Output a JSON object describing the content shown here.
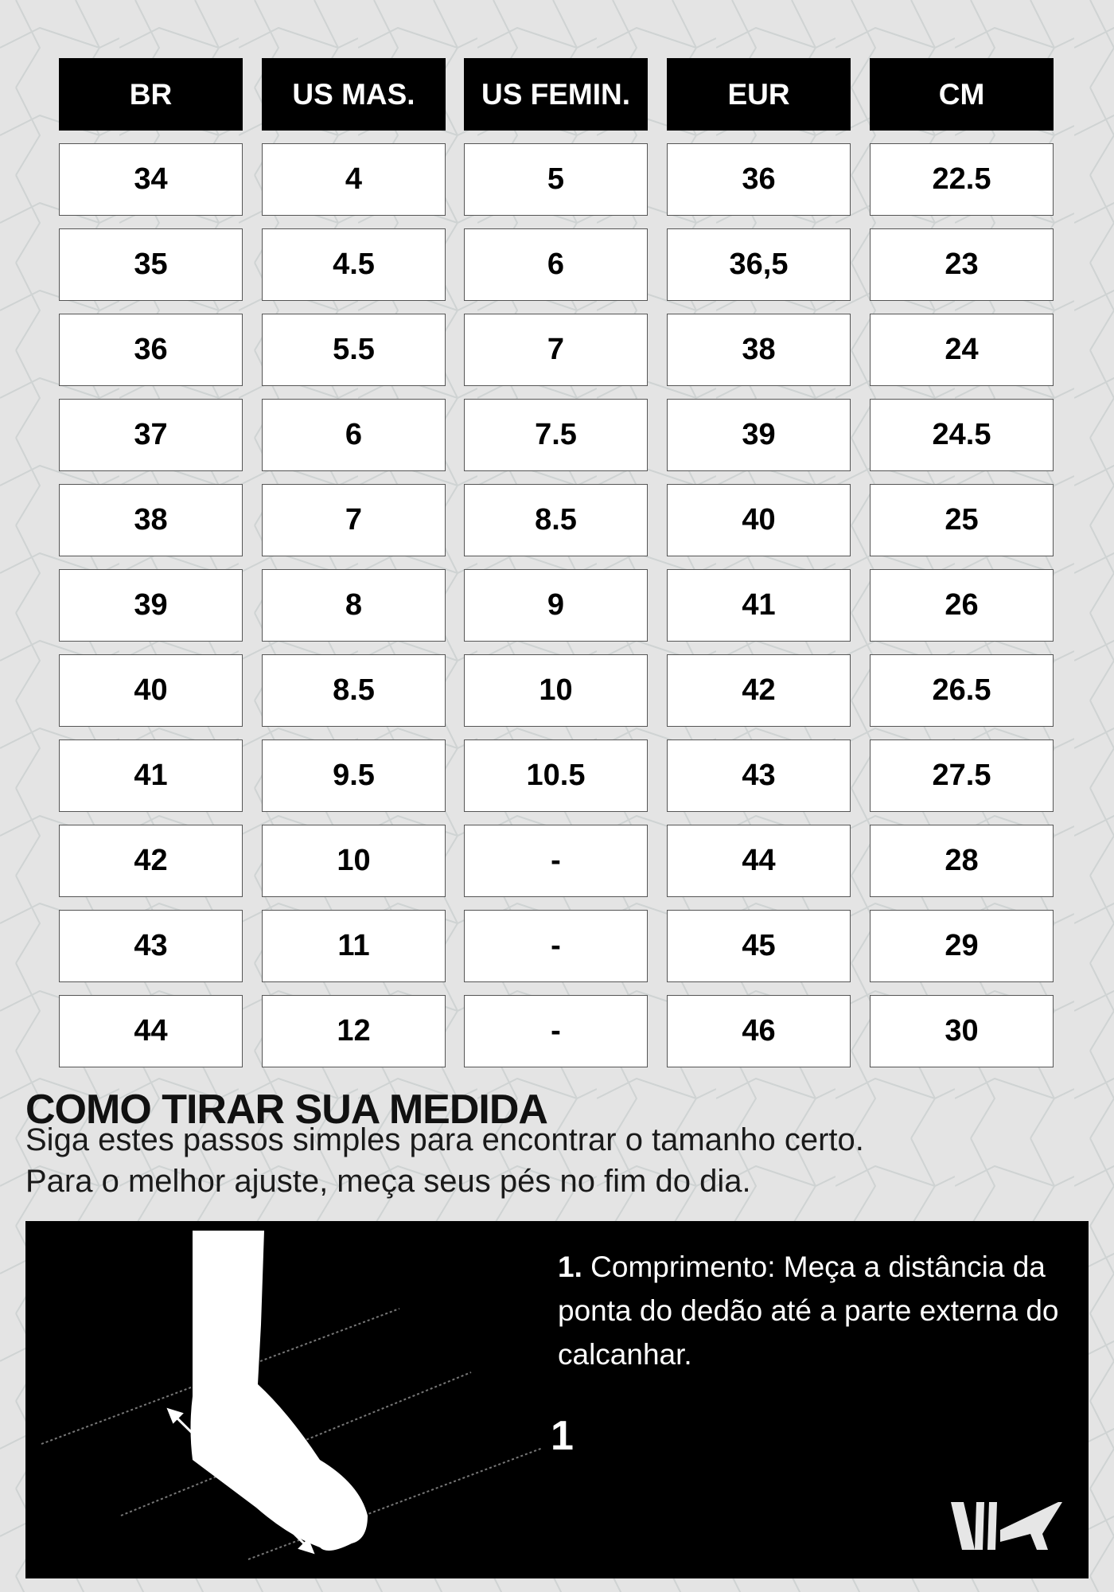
{
  "table": {
    "headers": [
      "BR",
      "US MAS.",
      "US FEMIN.",
      "EUR",
      "CM"
    ],
    "rows": [
      [
        "34",
        "4",
        "5",
        "36",
        "22.5"
      ],
      [
        "35",
        "4.5",
        "6",
        "36,5",
        "23"
      ],
      [
        "36",
        "5.5",
        "7",
        "38",
        "24"
      ],
      [
        "37",
        "6",
        "7.5",
        "39",
        "24.5"
      ],
      [
        "38",
        "7",
        "8.5",
        "40",
        "25"
      ],
      [
        "39",
        "8",
        "9",
        "41",
        "26"
      ],
      [
        "40",
        "8.5",
        "10",
        "42",
        "26.5"
      ],
      [
        "41",
        "9.5",
        "10.5",
        "43",
        "27.5"
      ],
      [
        "42",
        "10",
        "-",
        "44",
        "28"
      ],
      [
        "43",
        "11",
        "-",
        "45",
        "29"
      ],
      [
        "44",
        "12",
        "-",
        "46",
        "30"
      ]
    ]
  },
  "guide": {
    "title": "COMO TIRAR SUA MEDIDA",
    "subtitle_line1": "Siga estes passos simples para encontrar o tamanho certo.",
    "subtitle_line2": "Para o melhor ajuste, meça seus pés no fim do dia.",
    "step_number": "1.",
    "step_text": "Comprimento: Meça a distância da ponta do dedão até a parte externa do calcanhar.",
    "diagram_label": "1",
    "logo_text": "VK"
  },
  "colors": {
    "background": "#e4e4e4",
    "header": "#000000",
    "cell": "#ffffff",
    "panel": "#000000"
  }
}
